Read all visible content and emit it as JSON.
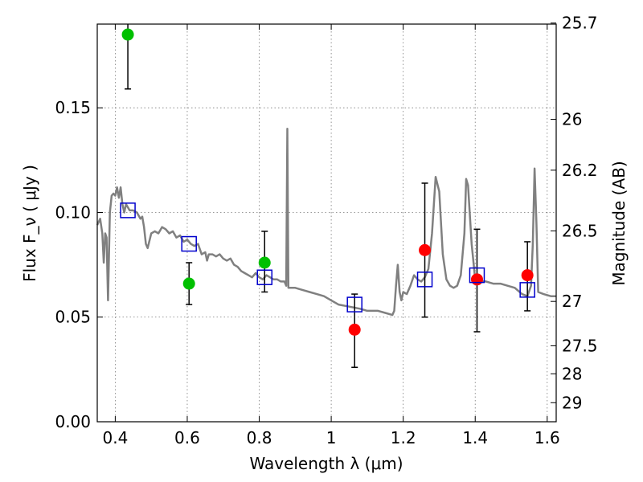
{
  "chart_data": {
    "type": "scatter",
    "title": "",
    "xlabel": "Wavelength  λ (μm)",
    "ylabel": "Flux  F_ν  ( μJy )",
    "ylabel_right": "Magnitude (AB)",
    "xlim": [
      0.35,
      1.625
    ],
    "ylim": [
      0.0,
      0.19
    ],
    "grid": true,
    "legend": "none",
    "x_ticks": [
      {
        "value": 0.4,
        "label": "0.4"
      },
      {
        "value": 0.6,
        "label": "0.6"
      },
      {
        "value": 0.8,
        "label": "0.8"
      },
      {
        "value": 1.0,
        "label": "1"
      },
      {
        "value": 1.2,
        "label": "1.2"
      },
      {
        "value": 1.4,
        "label": "1.4"
      },
      {
        "value": 1.6,
        "label": "1.6"
      }
    ],
    "y_ticks": [
      {
        "value": 0.0,
        "label": "0.00"
      },
      {
        "value": 0.05,
        "label": "0.05"
      },
      {
        "value": 0.1,
        "label": "0.10"
      },
      {
        "value": 0.15,
        "label": "0.15"
      }
    ],
    "mag_ticks": [
      {
        "flux": 0.1905,
        "label": "25.7"
      },
      {
        "flux": 0.1445,
        "label": "26"
      },
      {
        "flux": 0.1202,
        "label": "26.2"
      },
      {
        "flux": 0.0912,
        "label": "26.5"
      },
      {
        "flux": 0.0575,
        "label": "27"
      },
      {
        "flux": 0.0363,
        "label": "27.5"
      },
      {
        "flux": 0.0229,
        "label": "28"
      },
      {
        "flux": 0.0091,
        "label": "29"
      }
    ],
    "series": [
      {
        "type": "line",
        "color": "#808080",
        "points": [
          [
            0.35,
            0.094
          ],
          [
            0.358,
            0.097
          ],
          [
            0.364,
            0.09
          ],
          [
            0.368,
            0.076
          ],
          [
            0.372,
            0.09
          ],
          [
            0.376,
            0.088
          ],
          [
            0.38,
            0.058
          ],
          [
            0.385,
            0.1
          ],
          [
            0.39,
            0.108
          ],
          [
            0.395,
            0.109
          ],
          [
            0.4,
            0.108
          ],
          [
            0.405,
            0.112
          ],
          [
            0.41,
            0.107
          ],
          [
            0.415,
            0.112
          ],
          [
            0.42,
            0.104
          ],
          [
            0.425,
            0.1
          ],
          [
            0.43,
            0.104
          ],
          [
            0.44,
            0.101
          ],
          [
            0.45,
            0.101
          ],
          [
            0.46,
            0.1
          ],
          [
            0.47,
            0.097
          ],
          [
            0.475,
            0.098
          ],
          [
            0.48,
            0.093
          ],
          [
            0.485,
            0.085
          ],
          [
            0.49,
            0.083
          ],
          [
            0.5,
            0.09
          ],
          [
            0.51,
            0.091
          ],
          [
            0.52,
            0.09
          ],
          [
            0.53,
            0.093
          ],
          [
            0.54,
            0.092
          ],
          [
            0.55,
            0.09
          ],
          [
            0.56,
            0.091
          ],
          [
            0.57,
            0.088
          ],
          [
            0.58,
            0.089
          ],
          [
            0.59,
            0.086
          ],
          [
            0.6,
            0.087
          ],
          [
            0.61,
            0.085
          ],
          [
            0.62,
            0.084
          ],
          [
            0.63,
            0.085
          ],
          [
            0.64,
            0.08
          ],
          [
            0.65,
            0.081
          ],
          [
            0.655,
            0.077
          ],
          [
            0.66,
            0.08
          ],
          [
            0.67,
            0.08
          ],
          [
            0.68,
            0.079
          ],
          [
            0.69,
            0.08
          ],
          [
            0.7,
            0.078
          ],
          [
            0.71,
            0.077
          ],
          [
            0.72,
            0.078
          ],
          [
            0.73,
            0.075
          ],
          [
            0.74,
            0.074
          ],
          [
            0.75,
            0.072
          ],
          [
            0.76,
            0.071
          ],
          [
            0.77,
            0.07
          ],
          [
            0.78,
            0.069
          ],
          [
            0.79,
            0.071
          ],
          [
            0.8,
            0.069
          ],
          [
            0.81,
            0.068
          ],
          [
            0.82,
            0.07
          ],
          [
            0.83,
            0.069
          ],
          [
            0.84,
            0.068
          ],
          [
            0.85,
            0.068
          ],
          [
            0.86,
            0.067
          ],
          [
            0.87,
            0.067
          ],
          [
            0.875,
            0.065
          ],
          [
            0.878,
            0.14
          ],
          [
            0.881,
            0.064
          ],
          [
            0.89,
            0.064
          ],
          [
            0.9,
            0.064
          ],
          [
            0.92,
            0.063
          ],
          [
            0.94,
            0.062
          ],
          [
            0.96,
            0.061
          ],
          [
            0.98,
            0.06
          ],
          [
            1.0,
            0.058
          ],
          [
            1.02,
            0.056
          ],
          [
            1.05,
            0.055
          ],
          [
            1.08,
            0.054
          ],
          [
            1.1,
            0.053
          ],
          [
            1.13,
            0.053
          ],
          [
            1.15,
            0.052
          ],
          [
            1.17,
            0.051
          ],
          [
            1.175,
            0.053
          ],
          [
            1.18,
            0.065
          ],
          [
            1.185,
            0.075
          ],
          [
            1.19,
            0.062
          ],
          [
            1.195,
            0.058
          ],
          [
            1.2,
            0.062
          ],
          [
            1.21,
            0.061
          ],
          [
            1.22,
            0.065
          ],
          [
            1.23,
            0.07
          ],
          [
            1.24,
            0.068
          ],
          [
            1.25,
            0.067
          ],
          [
            1.26,
            0.069
          ],
          [
            1.27,
            0.073
          ],
          [
            1.28,
            0.09
          ],
          [
            1.29,
            0.117
          ],
          [
            1.3,
            0.11
          ],
          [
            1.31,
            0.08
          ],
          [
            1.32,
            0.068
          ],
          [
            1.33,
            0.065
          ],
          [
            1.34,
            0.064
          ],
          [
            1.35,
            0.065
          ],
          [
            1.36,
            0.07
          ],
          [
            1.37,
            0.09
          ],
          [
            1.375,
            0.116
          ],
          [
            1.38,
            0.113
          ],
          [
            1.39,
            0.085
          ],
          [
            1.4,
            0.068
          ],
          [
            1.41,
            0.067
          ],
          [
            1.43,
            0.067
          ],
          [
            1.45,
            0.066
          ],
          [
            1.47,
            0.066
          ],
          [
            1.49,
            0.065
          ],
          [
            1.51,
            0.064
          ],
          [
            1.53,
            0.061
          ],
          [
            1.545,
            0.06
          ],
          [
            1.555,
            0.065
          ],
          [
            1.56,
            0.085
          ],
          [
            1.565,
            0.121
          ],
          [
            1.57,
            0.095
          ],
          [
            1.575,
            0.062
          ],
          [
            1.59,
            0.061
          ],
          [
            1.61,
            0.06
          ],
          [
            1.625,
            0.06
          ]
        ]
      },
      {
        "type": "errorbar-points",
        "color": "#00c000",
        "points": [
          {
            "x": 0.435,
            "y": 0.185,
            "yerr_lo": 0.159,
            "yerr_hi": 0.19
          },
          {
            "x": 0.605,
            "y": 0.066,
            "yerr_lo": 0.056,
            "yerr_hi": 0.076
          },
          {
            "x": 0.815,
            "y": 0.076,
            "yerr_lo": 0.062,
            "yerr_hi": 0.091
          }
        ]
      },
      {
        "type": "errorbar-points",
        "color": "#ff0000",
        "points": [
          {
            "x": 1.065,
            "y": 0.044,
            "yerr_lo": 0.026,
            "yerr_hi": 0.061
          },
          {
            "x": 1.26,
            "y": 0.082,
            "yerr_lo": 0.05,
            "yerr_hi": 0.114
          },
          {
            "x": 1.405,
            "y": 0.068,
            "yerr_lo": 0.043,
            "yerr_hi": 0.092
          },
          {
            "x": 1.545,
            "y": 0.07,
            "yerr_lo": 0.053,
            "yerr_hi": 0.086
          }
        ]
      },
      {
        "type": "square-markers",
        "color": "#0000cc",
        "points": [
          {
            "x": 0.435,
            "y": 0.101
          },
          {
            "x": 0.605,
            "y": 0.085
          },
          {
            "x": 0.815,
            "y": 0.069
          },
          {
            "x": 1.065,
            "y": 0.056
          },
          {
            "x": 1.26,
            "y": 0.068
          },
          {
            "x": 1.405,
            "y": 0.07
          },
          {
            "x": 1.545,
            "y": 0.063
          }
        ]
      }
    ]
  }
}
